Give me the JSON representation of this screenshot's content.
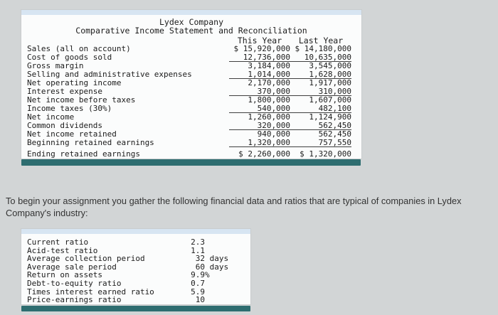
{
  "colors": {
    "page_bg": "#d2d5d6",
    "panel_bg": "#fbfcfc",
    "band": "#d7e5f2",
    "scrollbar": "#2e6d70"
  },
  "income_statement": {
    "title": "Lydex Company",
    "subtitle": "Comparative Income Statement and Reconciliation",
    "columns": [
      "This Year",
      "Last Year"
    ],
    "rows": [
      {
        "label": "Sales (all on account)",
        "this_year": "$ 15,920,000",
        "last_year": "$ 14,180,000",
        "underline": false,
        "final": false
      },
      {
        "label": "Cost of goods sold",
        "this_year": "12,736,000",
        "last_year": "10,635,000",
        "underline": true,
        "final": false
      },
      {
        "label": "Gross margin",
        "this_year": "3,184,000",
        "last_year": "3,545,000",
        "underline": false,
        "final": false
      },
      {
        "label": "Selling and administrative expenses",
        "this_year": "1,014,000",
        "last_year": "1,628,000",
        "underline": true,
        "final": false
      },
      {
        "label": "Net operating income",
        "this_year": "2,170,000",
        "last_year": "1,917,000",
        "underline": false,
        "final": false
      },
      {
        "label": "Interest expense",
        "this_year": "370,000",
        "last_year": "310,000",
        "underline": true,
        "final": false
      },
      {
        "label": "Net income before taxes",
        "this_year": "1,800,000",
        "last_year": "1,607,000",
        "underline": false,
        "final": false
      },
      {
        "label": "Income taxes (30%)",
        "this_year": "540,000",
        "last_year": "482,100",
        "underline": true,
        "final": false
      },
      {
        "label": "Net income",
        "this_year": "1,260,000",
        "last_year": "1,124,900",
        "underline": false,
        "final": false
      },
      {
        "label": "Common dividends",
        "this_year": "320,000",
        "last_year": "562,450",
        "underline": true,
        "final": false
      },
      {
        "label": "Net income retained",
        "this_year": "940,000",
        "last_year": "562,450",
        "underline": false,
        "final": false
      },
      {
        "label": "Beginning retained earnings",
        "this_year": "1,320,000",
        "last_year": "757,550",
        "underline": true,
        "final": false
      },
      {
        "label": "Ending retained earnings",
        "this_year": "$ 2,260,000",
        "last_year": "$ 1,320,000",
        "underline": false,
        "final": true
      }
    ]
  },
  "paragraph": "To begin your assignment you gather the following financial data and ratios that are typical of companies in Lydex Company's industry:",
  "ratios": {
    "rows": [
      {
        "label": "Current ratio",
        "value": "2.3",
        "suffix": ""
      },
      {
        "label": "Acid-test ratio",
        "value": "1.1",
        "suffix": ""
      },
      {
        "label": "Average collection period",
        "value": "32",
        "suffix": " days"
      },
      {
        "label": "Average sale period",
        "value": "60",
        "suffix": " days"
      },
      {
        "label": "Return on assets",
        "value": "9.9",
        "suffix": "%"
      },
      {
        "label": "Debt-to-equity ratio",
        "value": "0.7",
        "suffix": ""
      },
      {
        "label": "Times interest earned ratio",
        "value": "5.9",
        "suffix": ""
      },
      {
        "label": "Price-earnings ratio",
        "value": "10",
        "suffix": ""
      }
    ]
  }
}
